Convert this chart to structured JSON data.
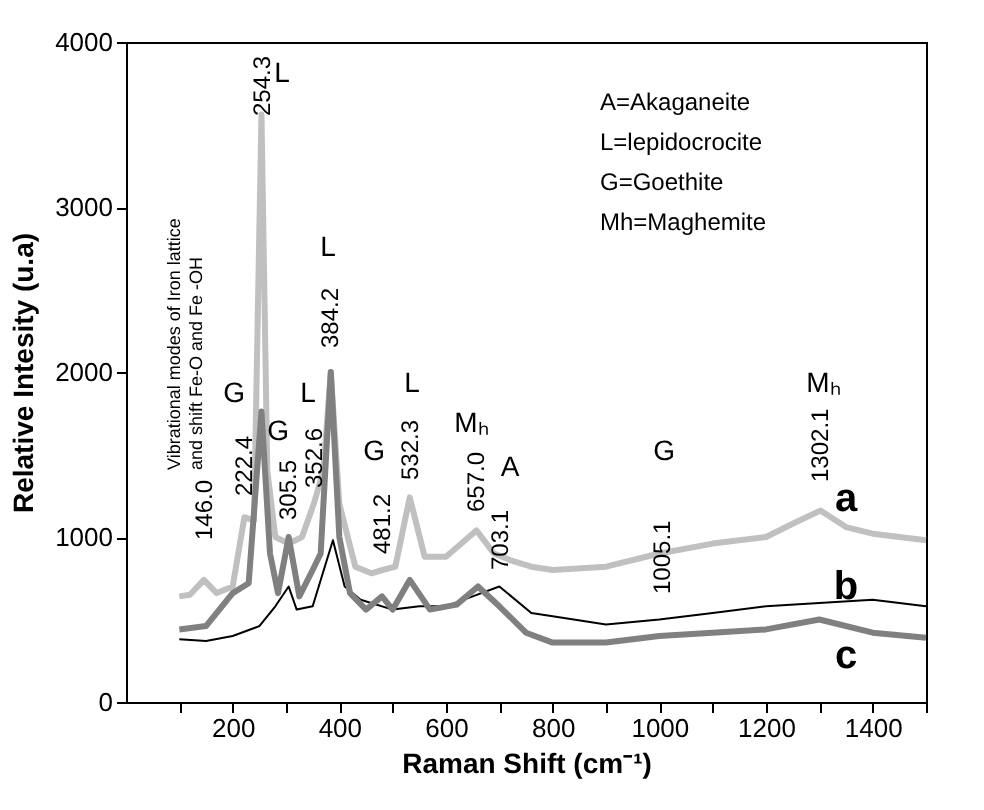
{
  "chart_data": {
    "type": "line",
    "xlabel": "Raman Shift (cm⁻¹)",
    "ylabel": "Relative Intesity (u.a)",
    "xlim": [
      0,
      1500
    ],
    "ylim": [
      0,
      4000
    ],
    "xticks": [
      {
        "value": 100,
        "label": null
      },
      200,
      {
        "value": 300,
        "label": null
      },
      400,
      {
        "value": 500,
        "label": null
      },
      600,
      {
        "value": 700,
        "label": null
      },
      800,
      {
        "value": 900,
        "label": null
      },
      1000,
      {
        "value": 1100,
        "label": null
      },
      1200,
      {
        "value": 1300,
        "label": null
      },
      1400,
      {
        "value": 1500,
        "label": null
      }
    ],
    "yticks": [
      0,
      1000,
      2000,
      3000,
      4000
    ],
    "grid": false,
    "series": [
      {
        "name": "a",
        "color": "#c0c0c0",
        "x": [
          100,
          120,
          146,
          170,
          200,
          222,
          240,
          254,
          265,
          280,
          305,
          330,
          352,
          370,
          384,
          400,
          430,
          460,
          481,
          505,
          532,
          560,
          600,
          657,
          690,
          720,
          760,
          800,
          900,
          1000,
          1100,
          1200,
          1250,
          1302,
          1350,
          1400,
          1450,
          1500
        ],
        "values": [
          640,
          650,
          740,
          660,
          700,
          1120,
          1100,
          3560,
          1400,
          1000,
          960,
          1000,
          1200,
          1400,
          2000,
          1200,
          820,
          780,
          800,
          820,
          1240,
          880,
          880,
          1040,
          900,
          860,
          820,
          800,
          820,
          900,
          960,
          1000,
          1080,
          1160,
          1060,
          1020,
          1000,
          980
        ]
      },
      {
        "name": "b",
        "color": "#000000",
        "x": [
          100,
          150,
          200,
          250,
          280,
          305,
          320,
          350,
          388,
          410,
          440,
          500,
          550,
          600,
          650,
          700,
          760,
          800,
          900,
          1000,
          1100,
          1200,
          1300,
          1400,
          1500
        ],
        "values": [
          380,
          370,
          400,
          460,
          580,
          700,
          560,
          580,
          980,
          700,
          620,
          560,
          580,
          580,
          640,
          700,
          540,
          520,
          470,
          500,
          540,
          580,
          600,
          620,
          580
        ]
      },
      {
        "name": "c",
        "color": "#808080",
        "x": [
          100,
          150,
          200,
          230,
          254,
          270,
          285,
          305,
          325,
          350,
          365,
          384,
          400,
          420,
          450,
          480,
          500,
          532,
          570,
          620,
          660,
          700,
          750,
          800,
          900,
          1000,
          1100,
          1200,
          1300,
          1400,
          1500
        ],
        "values": [
          440,
          460,
          660,
          720,
          1760,
          900,
          660,
          1000,
          640,
          800,
          900,
          2000,
          1000,
          660,
          560,
          640,
          560,
          740,
          560,
          590,
          700,
          580,
          420,
          360,
          360,
          400,
          420,
          440,
          500,
          420,
          390
        ]
      }
    ],
    "annotations": [
      "Vibrational modes of Iron lattice\nand shift Fe-O and Fe -OH",
      "A=Akaganeite",
      "L=lepidocrocite",
      "G=Goethite",
      "Mh=Maghemite",
      "146.0",
      "222.4",
      "254.3",
      "305.5",
      "352.6",
      "384.2",
      "481.2",
      "532.3",
      "657.0",
      "703.1",
      "1005.1",
      "1302.1",
      "L",
      "G",
      "G",
      "L",
      "L",
      "G",
      "L",
      "Mₕ",
      "A",
      "G",
      "Mₕ"
    ]
  }
}
